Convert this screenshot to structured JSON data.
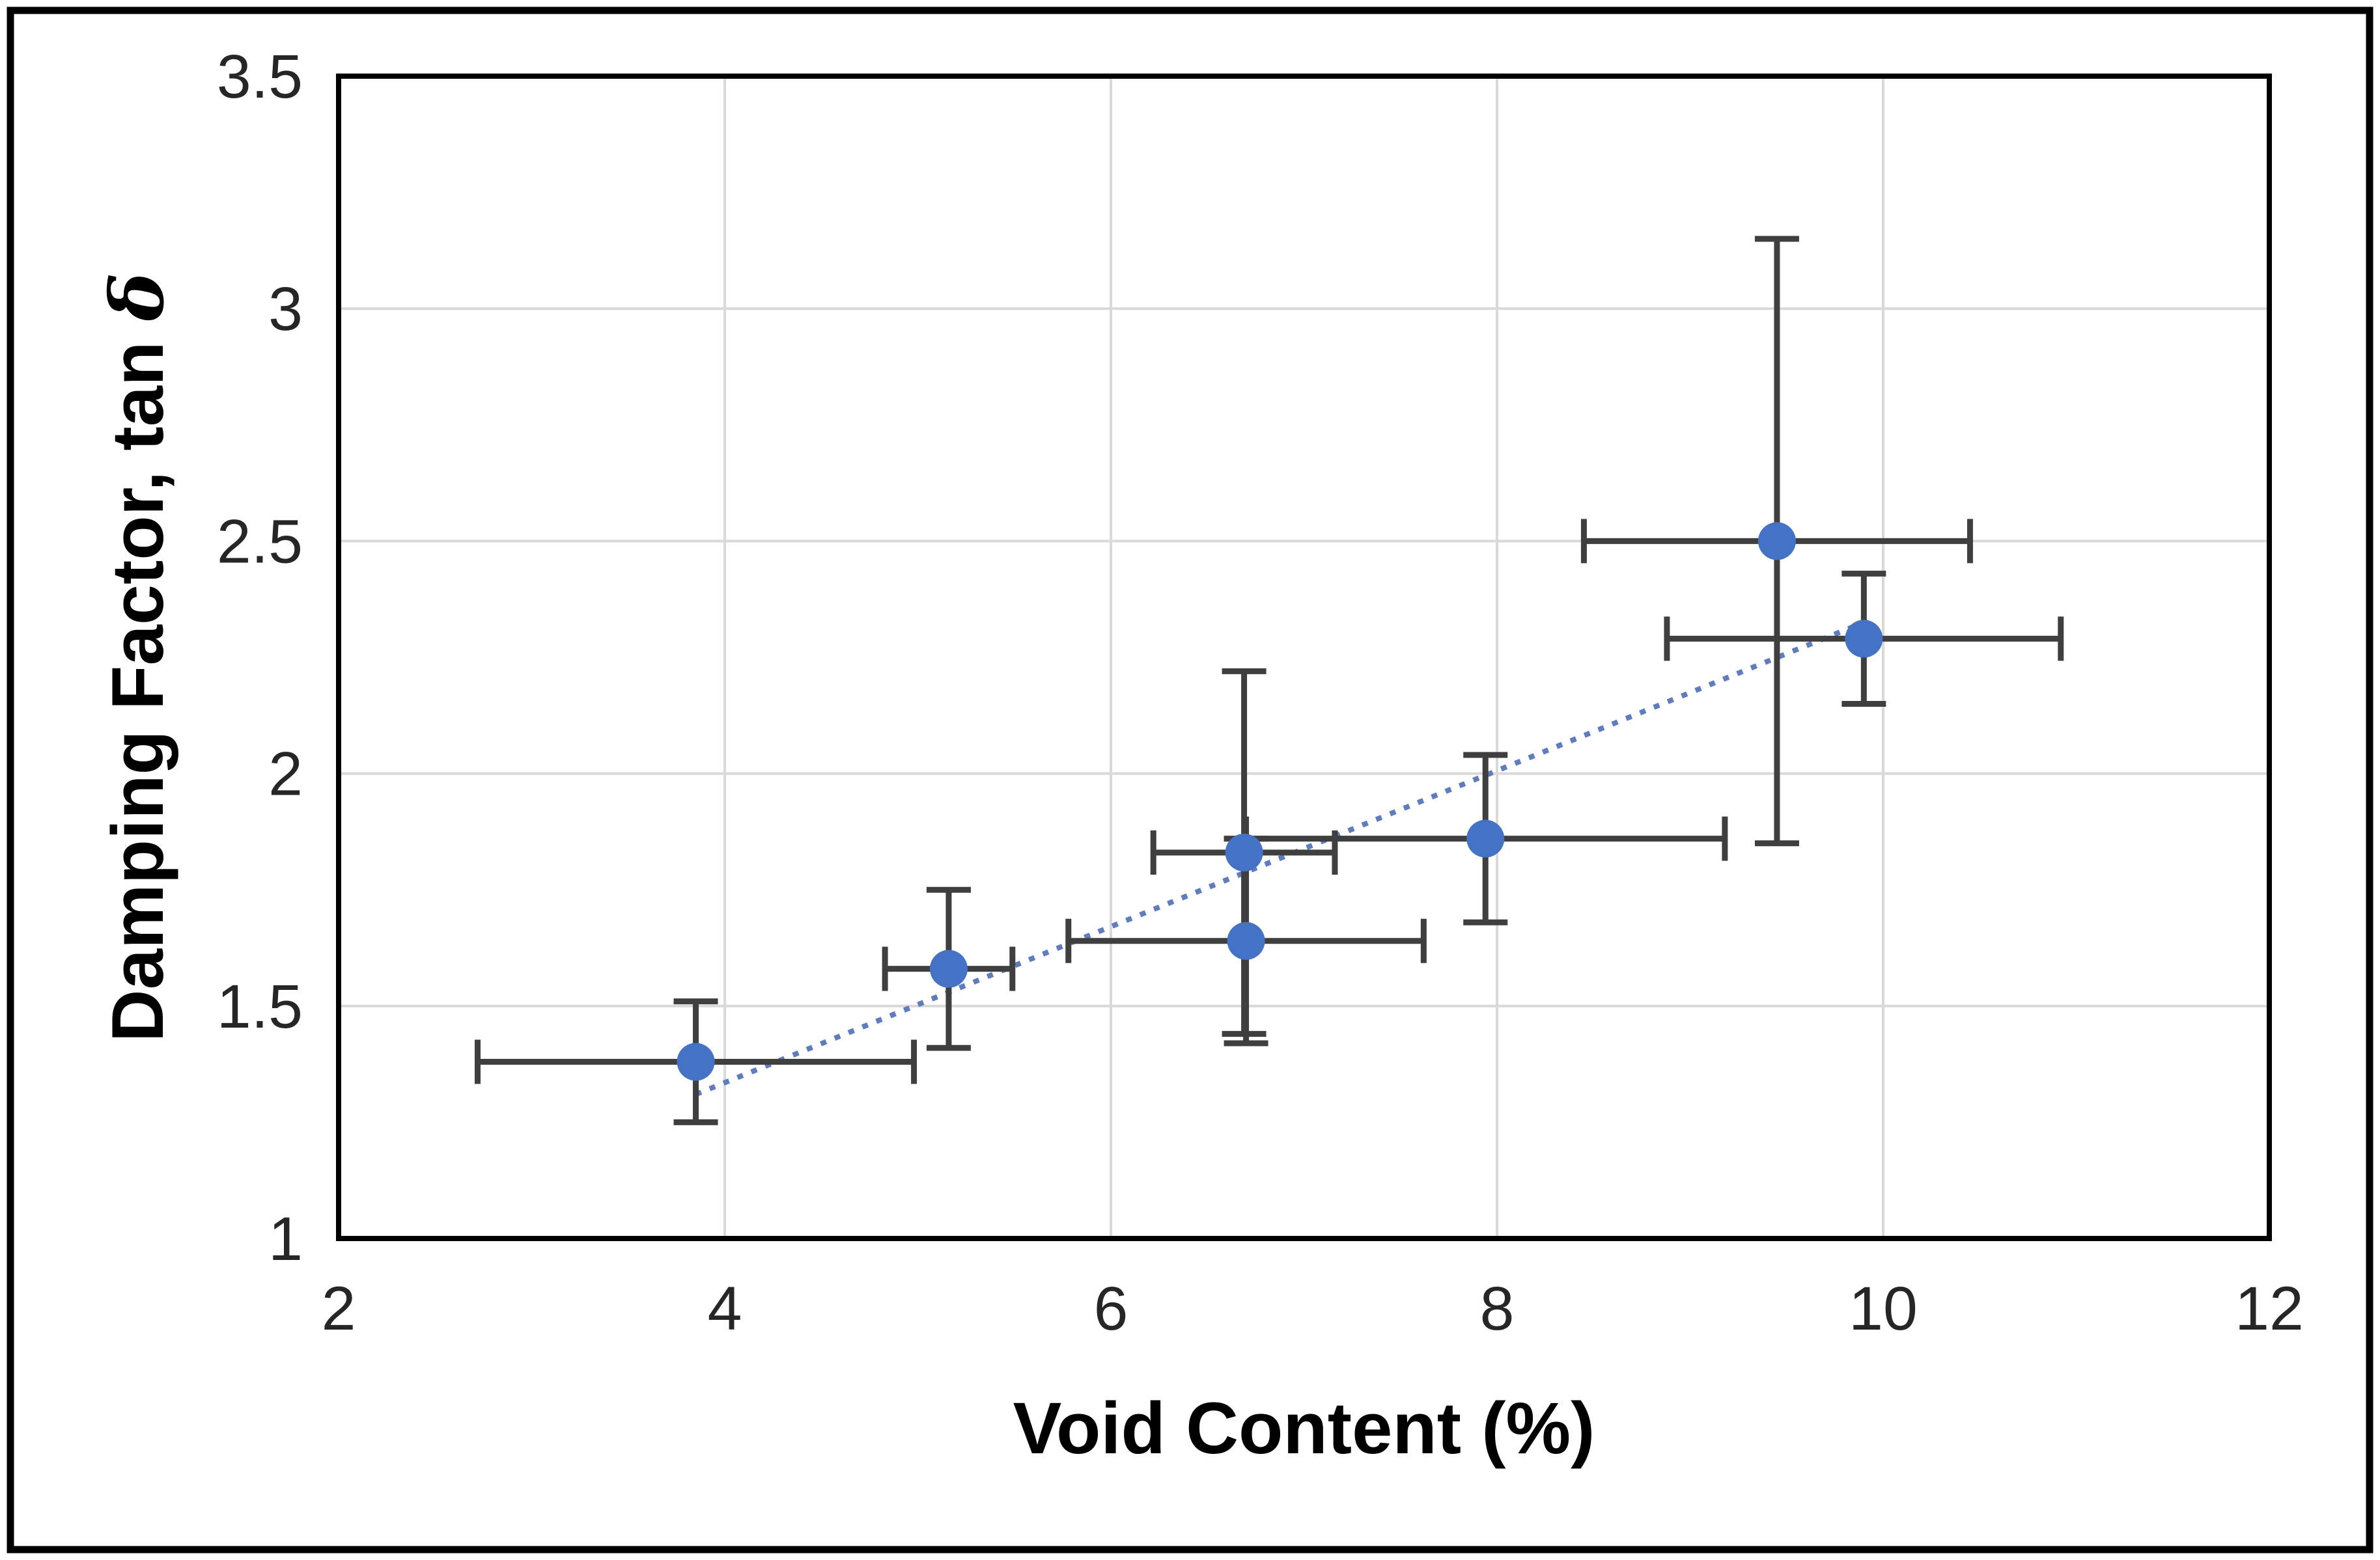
{
  "figure": {
    "background": "#ffffff",
    "outer_border_color": "#000000",
    "outer_border_width": 11
  },
  "chart_data": {
    "type": "scatter",
    "title": "",
    "xlabel": "Void Content (%)",
    "ylabel_prefix": "Damping Factor, tan ",
    "ylabel_symbol": "δ",
    "xlim": [
      2,
      12
    ],
    "ylim": [
      1,
      3.5
    ],
    "x_ticks": [
      "2",
      "4",
      "6",
      "8",
      "10",
      "12"
    ],
    "x_tick_values": [
      2,
      4,
      6,
      8,
      10,
      12
    ],
    "y_ticks": [
      "1",
      "1.5",
      "2",
      "2.5",
      "3",
      "3.5"
    ],
    "y_tick_values": [
      1,
      1.5,
      2,
      2.5,
      3,
      3.5
    ],
    "grid": true,
    "legend": "none",
    "points": [
      {
        "x": 3.85,
        "y": 1.38,
        "x_err": 1.13,
        "y_err": 0.13
      },
      {
        "x": 5.16,
        "y": 1.58,
        "x_err": 0.33,
        "y_err": 0.17
      },
      {
        "x": 6.69,
        "y": 1.83,
        "x_err": 0.47,
        "y_err": 0.39
      },
      {
        "x": 6.7,
        "y": 1.64,
        "x_err": 0.92,
        "y_err": 0.22
      },
      {
        "x": 7.94,
        "y": 1.86,
        "x_err": 1.24,
        "y_err": 0.18
      },
      {
        "x": 9.45,
        "y": 2.5,
        "x_err": 1.0,
        "y_err": 0.65
      },
      {
        "x": 9.9,
        "y": 2.29,
        "x_err": 1.02,
        "y_err": 0.14
      }
    ],
    "trendline": {
      "x1": 3.85,
      "y1": 1.31,
      "x2": 9.93,
      "y2": 2.33,
      "style": "dotted"
    },
    "colors": {
      "marker": "#4472C4",
      "trend": "#5E7CBE",
      "error_bar": "#3F3F3F",
      "grid": "#D9D9D9",
      "axis_frame": "#000000",
      "tick_text": "#262626",
      "title_text": "#000000"
    }
  }
}
